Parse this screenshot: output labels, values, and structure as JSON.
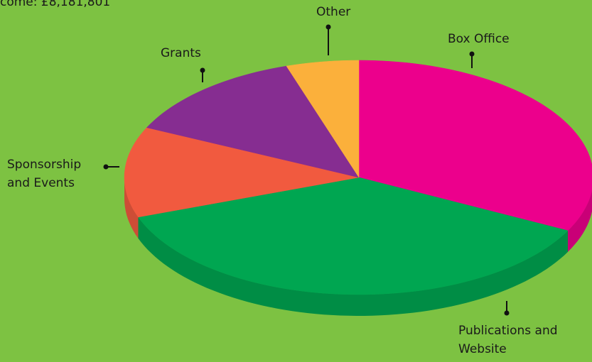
{
  "chart_data": {
    "type": "pie3d",
    "title": "come: £8,181,801",
    "categories": [
      "Box Office",
      "Publications and Website",
      "Sponsorship and Events",
      "Grants",
      "Other"
    ],
    "values": [
      32.5,
      37,
      12.5,
      13,
      5
    ],
    "colors": [
      "#ec008c",
      "#00a651",
      "#f15a3f",
      "#862d91",
      "#fbb03b"
    ]
  }
}
